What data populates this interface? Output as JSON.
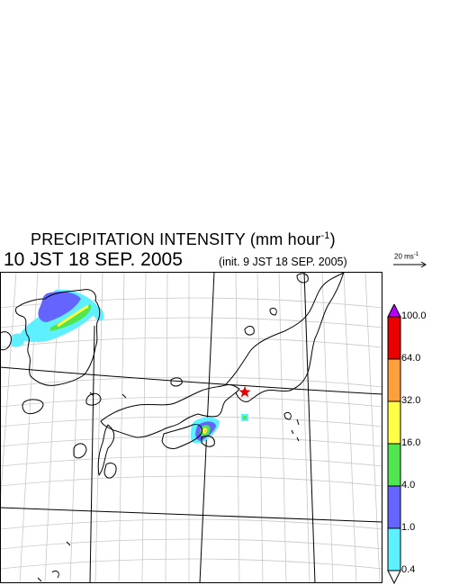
{
  "header": {
    "title": "PRECIPITATION INTENSITY (mm hour",
    "title_exp": "-1",
    "title_close": ")",
    "valid_time": "10 JST 18 SEP. 2005",
    "init_time": "(init. 9 JST 18 SEP. 2005)"
  },
  "reference_vector": {
    "label": "20 ms",
    "label_exp": "-1"
  },
  "legend": {
    "levels": [
      "0.4",
      "1.0",
      "4.0",
      "16.0",
      "32.0",
      "64.0",
      "100.0"
    ],
    "colors": [
      "#5ff0ff",
      "#6464ff",
      "#50e650",
      "#ffff46",
      "#ffa03c",
      "#eb0000",
      "#b400ff"
    ]
  },
  "marker": {
    "symbol": "star",
    "color": "#e60000"
  }
}
